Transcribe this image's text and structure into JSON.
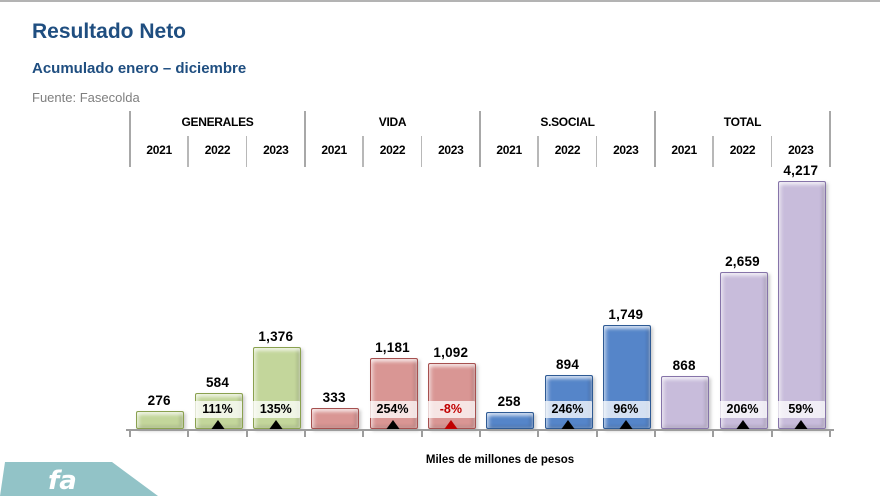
{
  "header": {
    "title": "Resultado Neto",
    "subtitle": "Acumulado enero – diciembre",
    "source": "Fuente: Fasecolda"
  },
  "footer": {
    "logo_text": "fa",
    "logo_color": "#92c3c7"
  },
  "chart_data": {
    "type": "bar",
    "title": "Resultado Neto",
    "subtitle": "Acumulado enero – diciembre",
    "source": "Fuente: Fasecolda",
    "xlabel": "Miles de millones de pesos",
    "ylim": [
      0,
      4400
    ],
    "grid": false,
    "legend": "none",
    "years": [
      "2021",
      "2022",
      "2023"
    ],
    "axis_color": "#9d9d9d",
    "negative_color": "#c00000",
    "groups": [
      {
        "name": "GENERALES",
        "fill": "#c3d69b",
        "border": "#8aa14f",
        "bars": [
          {
            "year": "2021",
            "value": 276,
            "label": "276"
          },
          {
            "year": "2022",
            "value": 584,
            "label": "584",
            "growth": "111%",
            "growth_color": "#000000"
          },
          {
            "year": "2023",
            "value": 1376,
            "label": "1,376",
            "growth": "135%",
            "growth_color": "#000000"
          }
        ]
      },
      {
        "name": "VIDA",
        "fill": "#d99694",
        "border": "#a6504f",
        "bars": [
          {
            "year": "2021",
            "value": 333,
            "label": "333"
          },
          {
            "year": "2022",
            "value": 1181,
            "label": "1,181",
            "growth": "254%",
            "growth_color": "#000000"
          },
          {
            "year": "2023",
            "value": 1092,
            "label": "1,092",
            "growth": "-8%",
            "growth_color": "#c00000"
          }
        ]
      },
      {
        "name": "S.SOCIAL",
        "fill": "#5585c9",
        "border": "#2e5a94",
        "bars": [
          {
            "year": "2021",
            "value": 258,
            "label": "258"
          },
          {
            "year": "2022",
            "value": 894,
            "label": "894",
            "growth": "246%",
            "growth_color": "#000000"
          },
          {
            "year": "2023",
            "value": 1749,
            "label": "1,749",
            "growth": "96%",
            "growth_color": "#000000"
          }
        ]
      },
      {
        "name": "TOTAL",
        "fill": "#c8bcdb",
        "border": "#8674a9",
        "bars": [
          {
            "year": "2021",
            "value": 868,
            "label": "868"
          },
          {
            "year": "2022",
            "value": 2659,
            "label": "2,659",
            "growth": "206%",
            "growth_color": "#000000"
          },
          {
            "year": "2023",
            "value": 4217,
            "label": "4,217",
            "growth": "59%",
            "growth_color": "#000000"
          }
        ]
      }
    ]
  }
}
